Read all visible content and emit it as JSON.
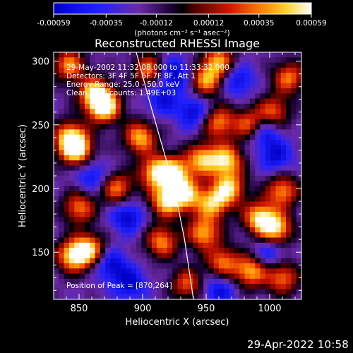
{
  "colorbar": {
    "ticks": [
      "-0.00059",
      "-0.00035",
      "-0.00012",
      "0.00012",
      "0.00035",
      "0.00059"
    ],
    "tick_values": [
      -0.00059,
      -0.00035,
      -0.00012,
      0.00012,
      0.00035,
      0.00059
    ],
    "units_label": "(photons cm⁻² s⁻¹ asec⁻²)",
    "colormap": "rhessi-rainbow"
  },
  "image": {
    "title": "Reconstructed RHESSI Image",
    "info_lines": [
      "29-May-2002 11:32:08.000 to 11:33:32.000",
      "Detectors: 3F 4F 5F 6F 7F 8F, Att 1",
      "Energy Range: 25.0 - 50.0 keV",
      "Clean     Total counts: 1.49E+03"
    ],
    "peak_text": "Position of Peak = [870,264]"
  },
  "timestamp": "29-Apr-2022 10:58",
  "chart_data": {
    "type": "heatmap",
    "title": "Reconstructed RHESSI Image",
    "xlabel": "Heliocentric X (arcsec)",
    "ylabel": "Heliocentric Y (arcsec)",
    "xlim": [
      830,
      1025
    ],
    "ylim": [
      113,
      307
    ],
    "xticks": [
      850,
      900,
      950,
      1000
    ],
    "yticks": [
      150,
      200,
      250,
      300
    ],
    "value_range": [
      -0.00059,
      0.00059
    ],
    "units": "photons cm^-2 s^-1 asec^-2",
    "peak_position": [
      870,
      264
    ],
    "limb_curve": {
      "x": [
        895,
        905,
        915,
        925,
        933,
        940
      ],
      "y": [
        307,
        270,
        235,
        200,
        160,
        113
      ]
    },
    "bright_regions": [
      {
        "x": 870,
        "y": 264,
        "level": 1.0
      },
      {
        "x": 862,
        "y": 275,
        "level": 0.75
      },
      {
        "x": 848,
        "y": 230,
        "level": 0.85
      },
      {
        "x": 843,
        "y": 240,
        "level": 0.75
      },
      {
        "x": 898,
        "y": 240,
        "level": 0.72
      },
      {
        "x": 910,
        "y": 213,
        "level": 0.75
      },
      {
        "x": 925,
        "y": 212,
        "level": 0.8
      },
      {
        "x": 918,
        "y": 190,
        "level": 0.75
      },
      {
        "x": 934,
        "y": 195,
        "level": 0.72
      },
      {
        "x": 947,
        "y": 223,
        "level": 0.7
      },
      {
        "x": 966,
        "y": 222,
        "level": 0.78
      },
      {
        "x": 968,
        "y": 200,
        "level": 0.75
      },
      {
        "x": 955,
        "y": 188,
        "level": 0.65
      },
      {
        "x": 992,
        "y": 177,
        "level": 0.8
      },
      {
        "x": 1005,
        "y": 168,
        "level": 0.82
      },
      {
        "x": 1010,
        "y": 198,
        "level": 0.62
      },
      {
        "x": 985,
        "y": 250,
        "level": 0.6
      },
      {
        "x": 960,
        "y": 252,
        "level": 0.58
      },
      {
        "x": 950,
        "y": 285,
        "level": 0.62
      },
      {
        "x": 960,
        "y": 300,
        "level": 0.6
      },
      {
        "x": 1015,
        "y": 287,
        "level": 0.55
      },
      {
        "x": 1003,
        "y": 260,
        "level": 0.5
      },
      {
        "x": 845,
        "y": 147,
        "level": 0.8
      },
      {
        "x": 858,
        "y": 152,
        "level": 0.72
      },
      {
        "x": 915,
        "y": 158,
        "level": 0.6
      },
      {
        "x": 948,
        "y": 165,
        "level": 0.7
      },
      {
        "x": 985,
        "y": 135,
        "level": 0.7
      },
      {
        "x": 963,
        "y": 142,
        "level": 0.55
      },
      {
        "x": 850,
        "y": 185,
        "level": 0.55
      },
      {
        "x": 842,
        "y": 297,
        "level": 0.6
      },
      {
        "x": 880,
        "y": 200,
        "level": 0.55
      },
      {
        "x": 905,
        "y": 293,
        "level": 0.55
      },
      {
        "x": 1010,
        "y": 130,
        "level": 0.55
      },
      {
        "x": 935,
        "y": 125,
        "level": 0.45
      }
    ],
    "dark_regions": [
      {
        "x": 925,
        "y": 290,
        "level": -0.7
      },
      {
        "x": 995,
        "y": 245,
        "level": -0.7
      },
      {
        "x": 888,
        "y": 178,
        "level": -0.65
      },
      {
        "x": 940,
        "y": 260,
        "level": -0.6
      },
      {
        "x": 1005,
        "y": 225,
        "level": -0.55
      },
      {
        "x": 875,
        "y": 140,
        "level": -0.6
      },
      {
        "x": 975,
        "y": 285,
        "level": -0.55
      },
      {
        "x": 860,
        "y": 210,
        "level": -0.5
      },
      {
        "x": 1000,
        "y": 150,
        "level": -0.5
      },
      {
        "x": 915,
        "y": 270,
        "level": -0.5
      },
      {
        "x": 890,
        "y": 125,
        "level": -0.6
      },
      {
        "x": 960,
        "y": 120,
        "level": -0.55
      }
    ]
  }
}
